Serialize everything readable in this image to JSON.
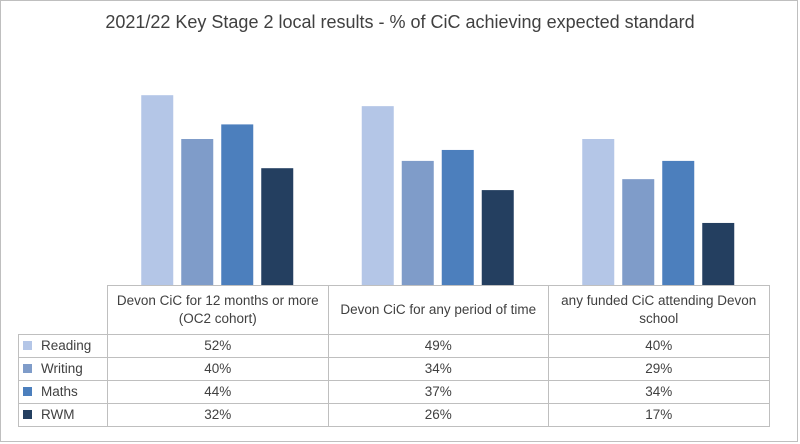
{
  "chart_data": {
    "type": "bar",
    "title": "2021/22 Key Stage 2 local results - % of CiC achieving expected standard",
    "categories": [
      "Devon CiC for 12 months or more (OC2 cohort)",
      "Devon CiC for any period of time",
      "any funded CiC attending Devon school"
    ],
    "series": [
      {
        "name": "Reading",
        "values": [
          52,
          49,
          40
        ],
        "labels": [
          "52%",
          "49%",
          "40%"
        ],
        "color": "#b4c6e7"
      },
      {
        "name": "Writing",
        "values": [
          40,
          34,
          29
        ],
        "labels": [
          "40%",
          "34%",
          "29%"
        ],
        "color": "#7f9cc9"
      },
      {
        "name": "Maths",
        "values": [
          44,
          37,
          34
        ],
        "labels": [
          "44%",
          "37%",
          "34%"
        ],
        "color": "#4c7fbd"
      },
      {
        "name": "RWM",
        "values": [
          32,
          26,
          17
        ],
        "labels": [
          "32%",
          "26%",
          "17%"
        ],
        "color": "#243f60"
      }
    ],
    "ylim": [
      0,
      55
    ],
    "grid": false,
    "legend": "data-table"
  }
}
